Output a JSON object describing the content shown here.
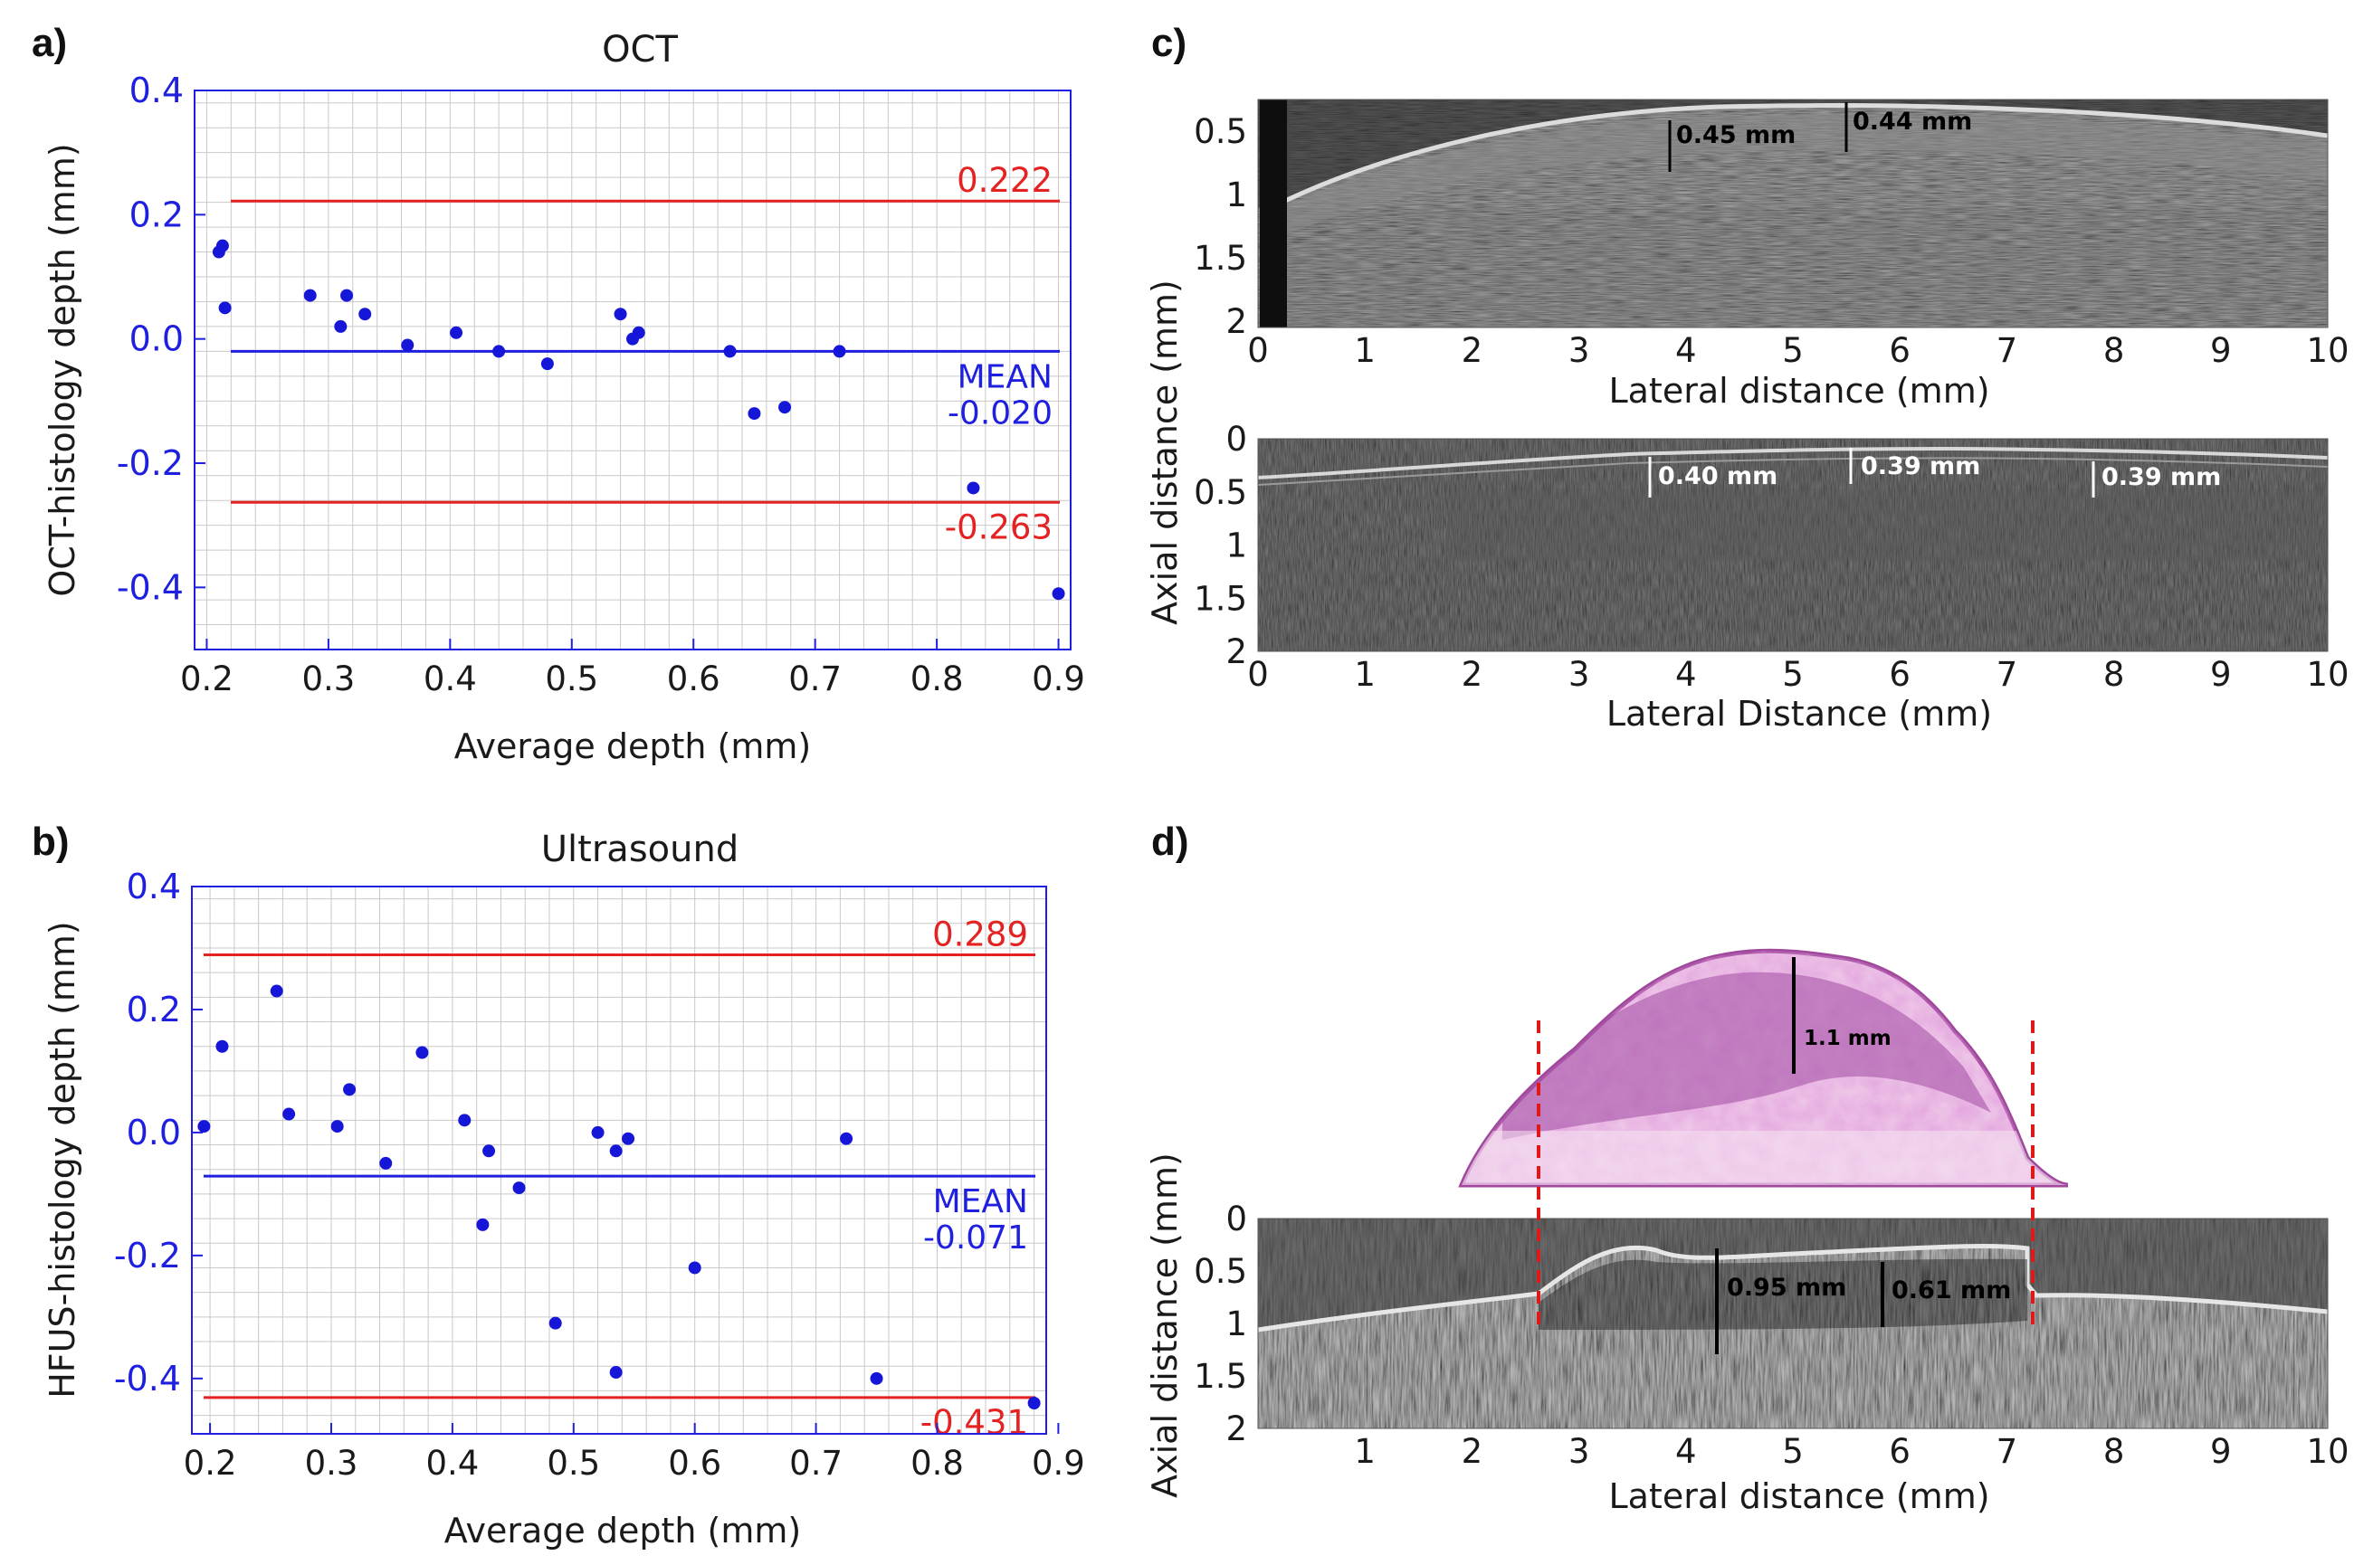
{
  "figure_labels": {
    "a": "a)",
    "b": "b)",
    "c": "c)",
    "d": "d)"
  },
  "colors": {
    "axis": "#1f1fe0",
    "limit_line": "#e52222",
    "mean_line": "#1f1fe0",
    "points": "#1616d8"
  },
  "chart_data": [
    {
      "id": "a",
      "type": "scatter",
      "title": "OCT",
      "xlabel": "Average depth (mm)",
      "ylabel": "OCT-histology depth (mm)",
      "xlim": [
        0.19,
        0.91
      ],
      "ylim": [
        -0.5,
        0.4
      ],
      "xticks": [
        0.2,
        0.3,
        0.4,
        0.5,
        0.6,
        0.7,
        0.8,
        0.9
      ],
      "xtick_labels": [
        "0.2",
        "0.3",
        "0.4",
        "0.5",
        "0.6",
        "0.7",
        "0.8",
        "0.9"
      ],
      "yticks": [
        0.4,
        0.2,
        0.0,
        -0.2,
        -0.4
      ],
      "ytick_labels": [
        "0.4",
        "0.2",
        "0.0",
        "-0.2",
        "-0.4"
      ],
      "upper_limit": {
        "value": 0.222,
        "label": "0.222"
      },
      "lower_limit": {
        "value": -0.263,
        "label": "-0.263"
      },
      "mean": {
        "value": -0.02,
        "label_top": "MEAN",
        "label_bottom": "-0.020"
      },
      "points": [
        [
          0.21,
          0.14
        ],
        [
          0.213,
          0.15
        ],
        [
          0.215,
          0.05
        ],
        [
          0.285,
          0.07
        ],
        [
          0.31,
          0.02
        ],
        [
          0.315,
          0.07
        ],
        [
          0.33,
          0.04
        ],
        [
          0.365,
          -0.01
        ],
        [
          0.405,
          0.01
        ],
        [
          0.44,
          -0.02
        ],
        [
          0.48,
          -0.04
        ],
        [
          0.54,
          0.04
        ],
        [
          0.55,
          0.0
        ],
        [
          0.555,
          0.01
        ],
        [
          0.63,
          -0.02
        ],
        [
          0.65,
          -0.12
        ],
        [
          0.675,
          -0.11
        ],
        [
          0.72,
          -0.02
        ],
        [
          0.83,
          -0.24
        ],
        [
          0.9,
          -0.41
        ]
      ]
    },
    {
      "id": "b",
      "type": "scatter",
      "title": "Ultrasound",
      "xlabel": "Average depth (mm)",
      "ylabel": "HFUS-histology depth (mm)",
      "xlim": [
        0.185,
        0.89
      ],
      "ylim": [
        -0.49,
        0.4
      ],
      "xticks": [
        0.2,
        0.3,
        0.4,
        0.5,
        0.6,
        0.7,
        0.8,
        0.9
      ],
      "xtick_labels": [
        "0.2",
        "0.3",
        "0.4",
        "0.5",
        "0.6",
        "0.7",
        "0.8",
        "0.9"
      ],
      "yticks": [
        0.4,
        0.2,
        0.0,
        -0.2,
        -0.4
      ],
      "ytick_labels": [
        "0.4",
        "0.2",
        "0.0",
        "-0.2",
        "-0.4"
      ],
      "upper_limit": {
        "value": 0.289,
        "label": "0.289"
      },
      "lower_limit": {
        "value": -0.431,
        "label": "-0.431"
      },
      "mean": {
        "value": -0.071,
        "label_top": "MEAN",
        "label_bottom": "-0.071"
      },
      "points": [
        [
          0.195,
          0.01
        ],
        [
          0.21,
          0.14
        ],
        [
          0.255,
          0.23
        ],
        [
          0.265,
          0.03
        ],
        [
          0.305,
          0.01
        ],
        [
          0.315,
          0.07
        ],
        [
          0.345,
          -0.05
        ],
        [
          0.375,
          0.13
        ],
        [
          0.41,
          0.02
        ],
        [
          0.425,
          -0.15
        ],
        [
          0.43,
          -0.03
        ],
        [
          0.455,
          -0.09
        ],
        [
          0.485,
          -0.31
        ],
        [
          0.52,
          0.0
        ],
        [
          0.535,
          -0.03
        ],
        [
          0.535,
          -0.39
        ],
        [
          0.545,
          -0.01
        ],
        [
          0.6,
          -0.22
        ],
        [
          0.725,
          -0.01
        ],
        [
          0.75,
          -0.4
        ],
        [
          0.88,
          -0.44
        ]
      ]
    }
  ],
  "images": {
    "c_top": {
      "x_ticks": [
        "0",
        "1",
        "2",
        "3",
        "4",
        "5",
        "6",
        "7",
        "8",
        "9",
        "10"
      ],
      "y_ticks": [
        "0.5",
        "1",
        "1.5",
        "2"
      ],
      "xlabel": "Lateral distance (mm)",
      "measurements": [
        "0.45 mm",
        "0.44 mm"
      ]
    },
    "c_bottom": {
      "x_ticks": [
        "0",
        "1",
        "2",
        "3",
        "4",
        "5",
        "6",
        "7",
        "8",
        "9",
        "10"
      ],
      "y_ticks": [
        "0",
        "0.5",
        "1",
        "1.5",
        "2"
      ],
      "xlabel": "Lateral Distance (mm)",
      "measurements": [
        "0.40 mm",
        "0.39 mm",
        "0.39 mm"
      ]
    },
    "c_ylabel": "Axial distance (mm)",
    "d": {
      "histology_measurement": "1.1 mm",
      "x_ticks": [
        "1",
        "2",
        "3",
        "4",
        "5",
        "6",
        "7",
        "8",
        "9",
        "10"
      ],
      "y_ticks": [
        "0",
        "0.5",
        "1",
        "1.5",
        "2"
      ],
      "xlabel": "Lateral distance (mm)",
      "ylabel": "Axial distance (mm)",
      "measurements": [
        "0.95 mm",
        "0.61 mm"
      ]
    }
  }
}
